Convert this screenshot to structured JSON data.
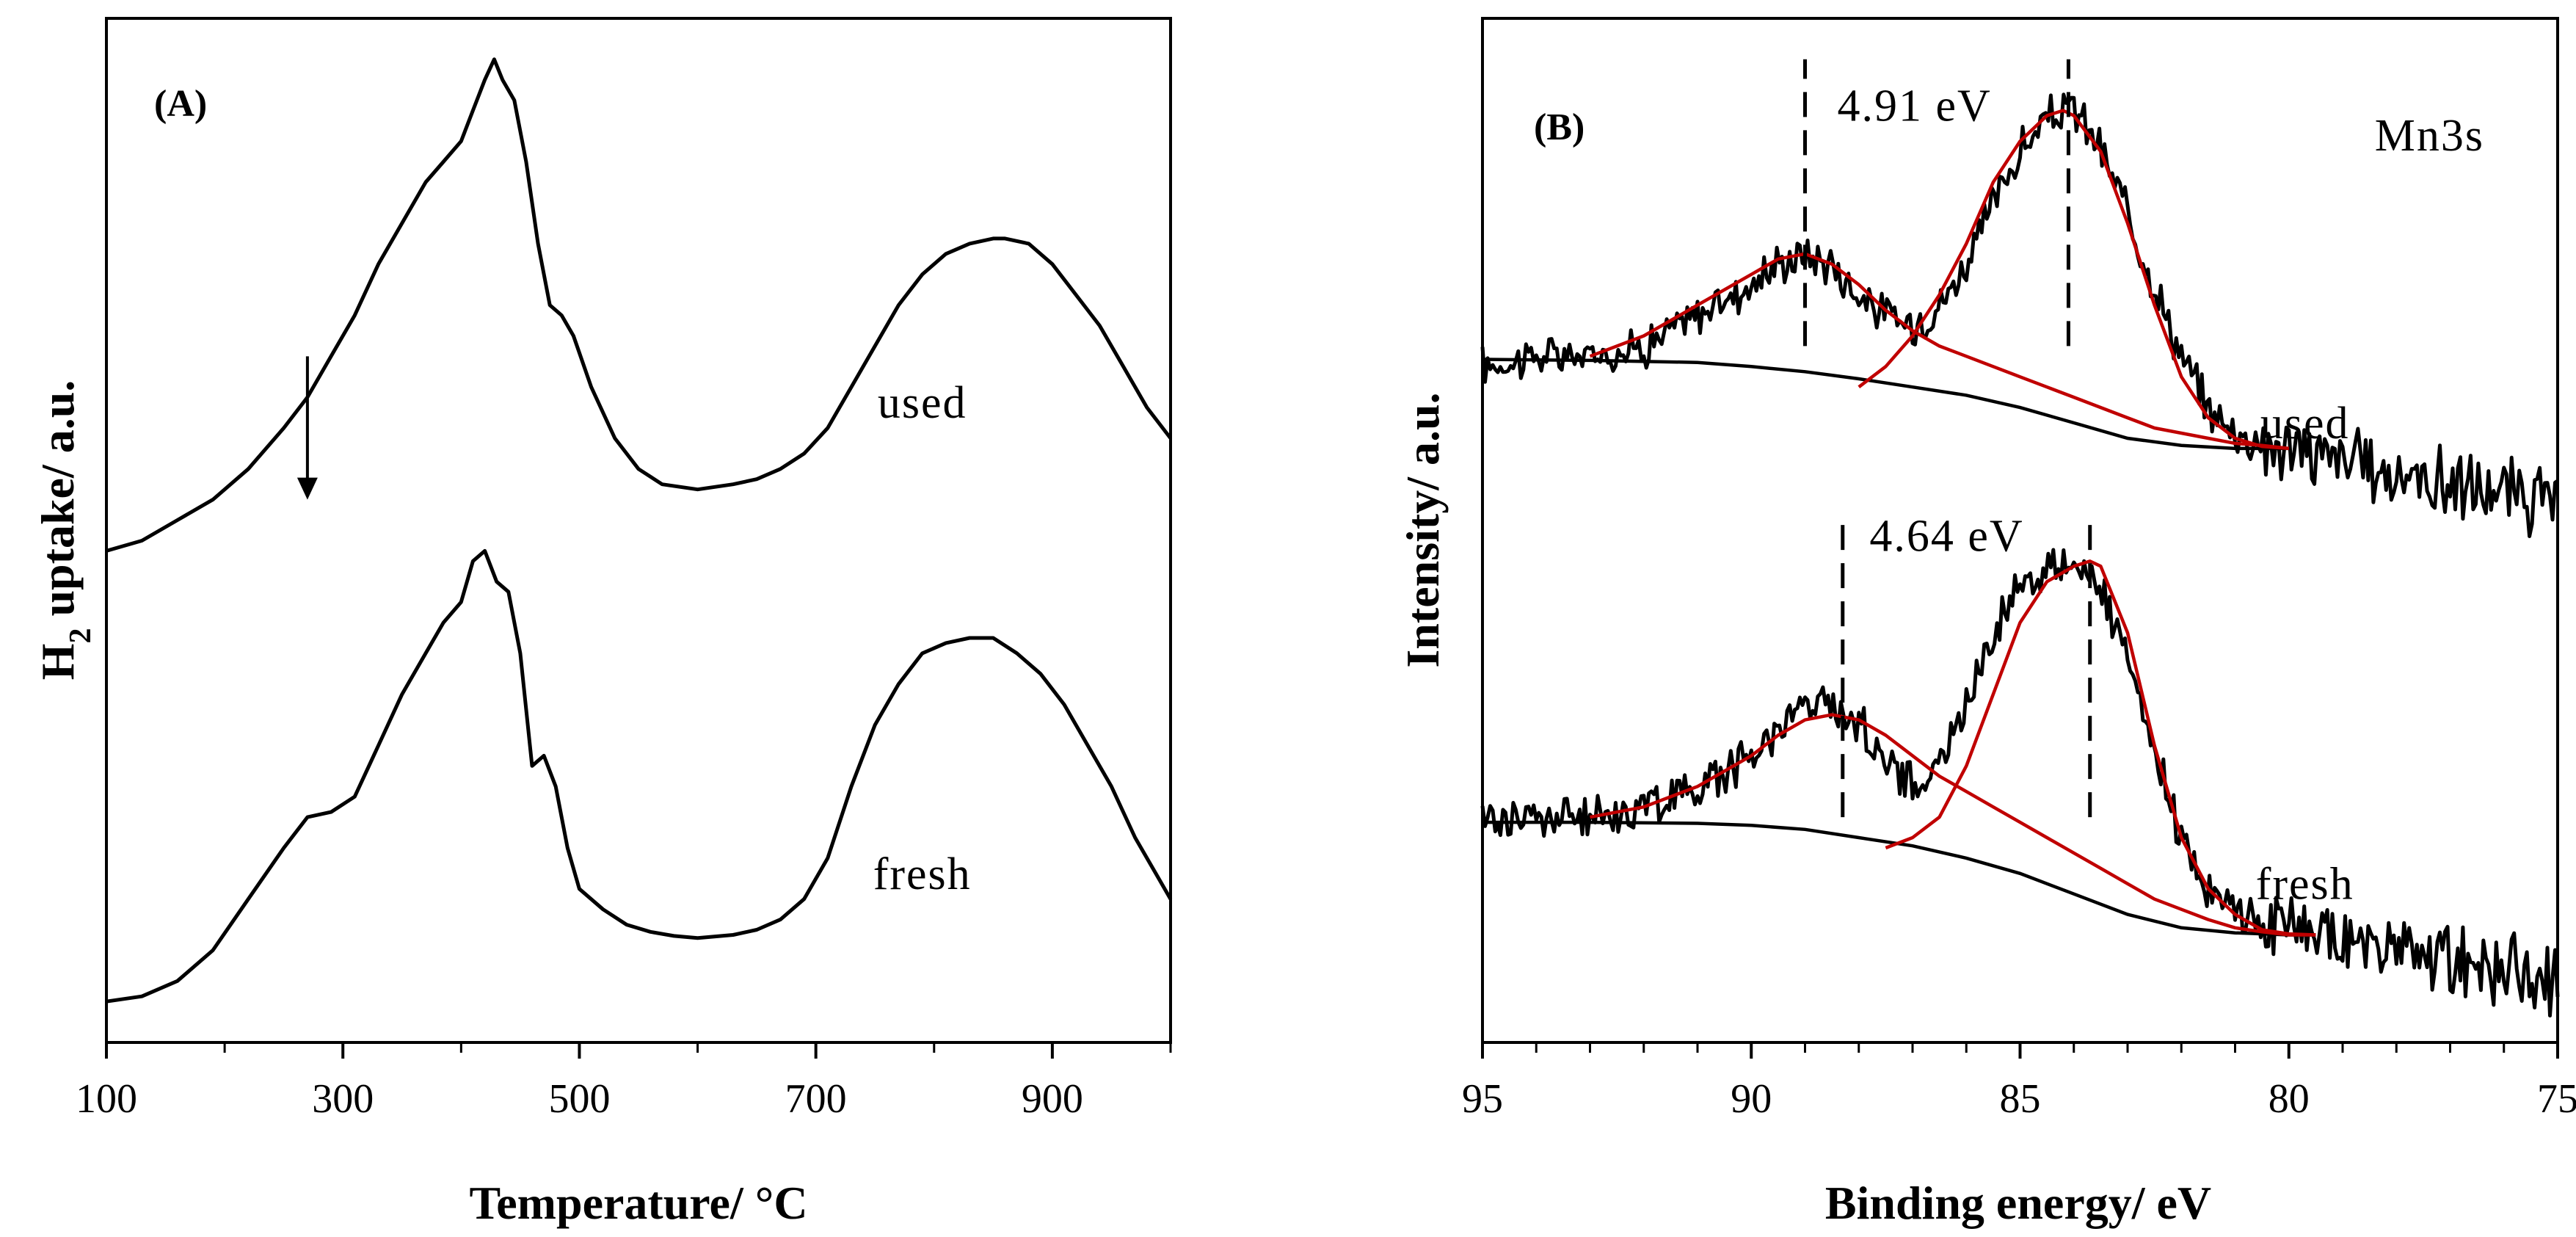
{
  "chart_data": [
    {
      "type": "line",
      "panel_label": "(A)",
      "xlabel": "Temperature/ °C",
      "ylabel_main": "H",
      "ylabel_sub": "2",
      "ylabel_rest": " uptake/ a.u.",
      "xlim": [
        100,
        1000
      ],
      "ylim": [
        0,
        1
      ],
      "xticks": [
        100,
        300,
        500,
        700,
        900
      ],
      "xtick_labels": [
        "100",
        "300",
        "500",
        "700",
        "900"
      ],
      "minor_xticks": [
        200,
        400,
        600,
        800,
        1000
      ],
      "arrow_annotation": {
        "x": 270,
        "y_from": 0.67,
        "y_to": 0.53
      },
      "series": [
        {
          "name": "used",
          "label_text": "used",
          "label_anchor": {
            "x": 790,
            "y": 0.61
          },
          "x": [
            100,
            130,
            160,
            190,
            220,
            250,
            270,
            290,
            310,
            330,
            350,
            370,
            385,
            400,
            410,
            420,
            428,
            435,
            445,
            455,
            465,
            475,
            485,
            495,
            510,
            530,
            550,
            570,
            600,
            630,
            650,
            670,
            690,
            710,
            730,
            750,
            770,
            790,
            810,
            830,
            850,
            860,
            880,
            900,
            920,
            940,
            960,
            980,
            1000
          ],
          "y": [
            0.48,
            0.49,
            0.51,
            0.53,
            0.56,
            0.6,
            0.63,
            0.67,
            0.71,
            0.76,
            0.8,
            0.84,
            0.86,
            0.88,
            0.91,
            0.94,
            0.96,
            0.94,
            0.92,
            0.86,
            0.78,
            0.72,
            0.71,
            0.69,
            0.64,
            0.59,
            0.56,
            0.545,
            0.54,
            0.545,
            0.55,
            0.56,
            0.575,
            0.6,
            0.64,
            0.68,
            0.72,
            0.75,
            0.77,
            0.78,
            0.785,
            0.785,
            0.78,
            0.76,
            0.73,
            0.7,
            0.66,
            0.62,
            0.59
          ]
        },
        {
          "name": "fresh",
          "label_text": "fresh",
          "label_anchor": {
            "x": 790,
            "y": 0.15
          },
          "x": [
            100,
            130,
            160,
            190,
            220,
            250,
            270,
            290,
            310,
            330,
            350,
            370,
            385,
            400,
            410,
            420,
            430,
            440,
            450,
            460,
            470,
            480,
            490,
            500,
            520,
            540,
            560,
            580,
            600,
            630,
            650,
            670,
            690,
            710,
            730,
            750,
            770,
            790,
            810,
            830,
            850,
            870,
            890,
            910,
            930,
            950,
            970,
            990,
            1000
          ],
          "y": [
            0.04,
            0.045,
            0.06,
            0.09,
            0.14,
            0.19,
            0.22,
            0.225,
            0.24,
            0.29,
            0.34,
            0.38,
            0.41,
            0.43,
            0.47,
            0.48,
            0.45,
            0.44,
            0.38,
            0.27,
            0.28,
            0.25,
            0.19,
            0.15,
            0.13,
            0.115,
            0.108,
            0.104,
            0.102,
            0.105,
            0.11,
            0.12,
            0.14,
            0.18,
            0.25,
            0.31,
            0.35,
            0.38,
            0.39,
            0.395,
            0.395,
            0.38,
            0.36,
            0.33,
            0.29,
            0.25,
            0.2,
            0.16,
            0.14
          ]
        }
      ]
    },
    {
      "type": "line",
      "panel_label": "(B)",
      "corner_label": "Mn3s",
      "xlabel": "Binding energy/ eV",
      "ylabel": "Intensity/ a.u.",
      "xlim": [
        95,
        75
      ],
      "ylim": [
        0,
        1
      ],
      "xticks": [
        95,
        90,
        85,
        80,
        75
      ],
      "xtick_labels": [
        "95",
        "90",
        "85",
        "80",
        "75"
      ],
      "minor_xticks": [
        94,
        93,
        92,
        91,
        89,
        88,
        87,
        86,
        84,
        83,
        82,
        81,
        79,
        78,
        77,
        76
      ],
      "series": [
        {
          "name": "used",
          "label_text": "used",
          "label_anchor": {
            "x": 79.7,
            "y": 0.59
          },
          "splitting_label": "4.91 eV",
          "splitting_label_anchor": {
            "x": 88.4,
            "y": 0.9
          },
          "dashed_lines": [
            {
              "x": 89.0,
              "y_from": 0.68,
              "y_to": 0.96
            },
            {
              "x": 84.1,
              "y_from": 0.68,
              "y_to": 0.96
            }
          ],
          "envelope_x": [
            95,
            94,
            93,
            92,
            91,
            90,
            89.5,
            89,
            88.5,
            88,
            87.5,
            87,
            86.5,
            86,
            85.5,
            85,
            84.5,
            84.2,
            84,
            83.7,
            83.5,
            83,
            82.5,
            82,
            81.5,
            81,
            80.5,
            80,
            79.5,
            79,
            78.5,
            78,
            77.5,
            77,
            76.5,
            76,
            75.5,
            75
          ],
          "envelope_y": [
            0.66,
            0.67,
            0.67,
            0.68,
            0.71,
            0.74,
            0.76,
            0.77,
            0.76,
            0.73,
            0.71,
            0.7,
            0.72,
            0.76,
            0.82,
            0.87,
            0.9,
            0.91,
            0.91,
            0.89,
            0.87,
            0.81,
            0.74,
            0.67,
            0.62,
            0.595,
            0.585,
            0.58,
            0.575,
            0.57,
            0.56,
            0.555,
            0.55,
            0.545,
            0.54,
            0.535,
            0.53,
            0.525
          ],
          "fit_peak1_x": [
            93,
            92,
            91,
            90,
            89.5,
            89,
            88.5,
            88,
            87.5,
            87,
            86.5,
            86,
            85.5,
            85,
            84.5,
            84,
            83.5,
            83,
            82.5,
            82,
            81.5,
            81,
            80.5,
            80
          ],
          "fit_peak1_y": [
            0.67,
            0.69,
            0.72,
            0.75,
            0.765,
            0.77,
            0.76,
            0.74,
            0.715,
            0.695,
            0.68,
            0.67,
            0.66,
            0.65,
            0.64,
            0.63,
            0.62,
            0.61,
            0.6,
            0.595,
            0.59,
            0.585,
            0.583,
            0.58
          ],
          "fit_peak2_x": [
            88,
            87.5,
            87,
            86.5,
            86,
            85.5,
            85,
            84.5,
            84.2,
            84,
            83.5,
            83,
            82.5,
            82,
            81.5,
            81,
            80.5,
            80
          ],
          "fit_peak2_y": [
            0.64,
            0.66,
            0.69,
            0.73,
            0.78,
            0.84,
            0.88,
            0.905,
            0.91,
            0.905,
            0.87,
            0.8,
            0.72,
            0.65,
            0.61,
            0.59,
            0.582,
            0.58
          ],
          "baseline_x": [
            95,
            93,
            91,
            90,
            89,
            88,
            87,
            86,
            85,
            84,
            83,
            82,
            81,
            80
          ],
          "baseline_y": [
            0.667,
            0.666,
            0.664,
            0.66,
            0.655,
            0.648,
            0.64,
            0.632,
            0.62,
            0.605,
            0.59,
            0.583,
            0.58,
            0.58
          ]
        },
        {
          "name": "fresh",
          "label_text": "fresh",
          "label_anchor": {
            "x": 79.7,
            "y": 0.14
          },
          "splitting_label": "4.64 eV",
          "splitting_label_anchor": {
            "x": 87.8,
            "y": 0.48
          },
          "dashed_lines": [
            {
              "x": 88.3,
              "y_from": 0.22,
              "y_to": 0.51
            },
            {
              "x": 83.7,
              "y_from": 0.22,
              "y_to": 0.51
            }
          ],
          "envelope_x": [
            95,
            94,
            93,
            92,
            91,
            90,
            89.5,
            89,
            88.5,
            88,
            87.5,
            87,
            86.5,
            86,
            85.5,
            85,
            84.5,
            84,
            83.7,
            83.5,
            83,
            82.5,
            82,
            81.5,
            81,
            80.5,
            80,
            79.5,
            79,
            78.5,
            78,
            77.5,
            77,
            76.5,
            76,
            75.5,
            75
          ],
          "envelope_y": [
            0.22,
            0.22,
            0.22,
            0.23,
            0.25,
            0.28,
            0.31,
            0.33,
            0.33,
            0.31,
            0.28,
            0.25,
            0.27,
            0.33,
            0.4,
            0.45,
            0.46,
            0.47,
            0.46,
            0.44,
            0.37,
            0.28,
            0.2,
            0.15,
            0.13,
            0.12,
            0.11,
            0.105,
            0.1,
            0.095,
            0.09,
            0.085,
            0.08,
            0.075,
            0.07,
            0.065,
            0.06
          ],
          "fit_peak1_x": [
            93,
            92,
            91,
            90,
            89.5,
            89,
            88.5,
            88,
            87.5,
            87,
            86.5,
            86,
            85.5,
            85,
            84.5,
            84,
            83.5,
            83,
            82.5,
            82,
            81.5,
            81,
            80.5,
            80,
            79.5
          ],
          "fit_peak1_y": [
            0.22,
            0.23,
            0.25,
            0.28,
            0.3,
            0.315,
            0.32,
            0.315,
            0.3,
            0.28,
            0.26,
            0.245,
            0.23,
            0.215,
            0.2,
            0.185,
            0.17,
            0.155,
            0.14,
            0.13,
            0.12,
            0.112,
            0.108,
            0.105,
            0.105
          ],
          "fit_peak2_x": [
            87.5,
            87,
            86.5,
            86,
            85.5,
            85,
            84.5,
            84,
            83.7,
            83.5,
            83,
            82.5,
            82,
            81.5,
            81,
            80.5,
            80,
            79.5
          ],
          "fit_peak2_y": [
            0.19,
            0.2,
            0.22,
            0.27,
            0.34,
            0.41,
            0.45,
            0.465,
            0.47,
            0.465,
            0.4,
            0.29,
            0.2,
            0.15,
            0.125,
            0.11,
            0.106,
            0.105
          ],
          "baseline_x": [
            95,
            93,
            91,
            90,
            89,
            88,
            87,
            86,
            85,
            84,
            83,
            82,
            81,
            80,
            79.5
          ],
          "baseline_y": [
            0.215,
            0.215,
            0.214,
            0.212,
            0.208,
            0.2,
            0.192,
            0.18,
            0.165,
            0.145,
            0.125,
            0.112,
            0.107,
            0.105,
            0.105
          ]
        }
      ]
    }
  ]
}
